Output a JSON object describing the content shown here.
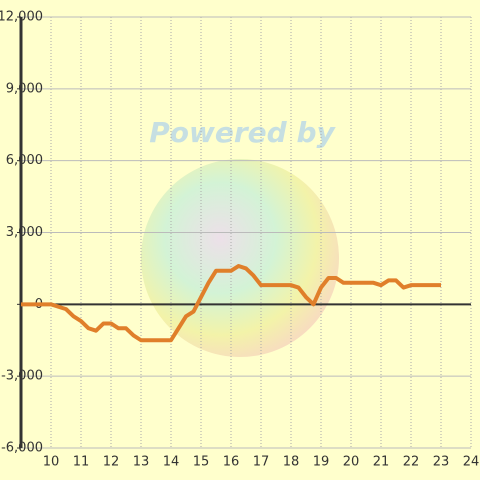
{
  "chart_data": {
    "type": "line",
    "watermark": "Powered by",
    "x": [
      9,
      9.25,
      9.5,
      9.75,
      10,
      10.25,
      10.5,
      10.75,
      11,
      11.25,
      11.5,
      11.75,
      12,
      12.25,
      12.5,
      12.75,
      13,
      13.25,
      13.5,
      13.75,
      14,
      14.25,
      14.5,
      14.75,
      15,
      15.25,
      15.5,
      15.75,
      16,
      16.25,
      16.5,
      16.75,
      17,
      17.25,
      17.5,
      17.75,
      18,
      18.25,
      18.5,
      18.75,
      19,
      19.25,
      19.5,
      19.75,
      20,
      20.25,
      20.5,
      20.75,
      21,
      21.25,
      21.5,
      21.75,
      22,
      22.25,
      22.5,
      22.75,
      23
    ],
    "series": [
      {
        "color": "#e07f2a",
        "values": [
          0,
          0,
          0,
          0,
          0,
          -100,
          -200,
          -500,
          -700,
          -1000,
          -1100,
          -800,
          -800,
          -1000,
          -1000,
          -1300,
          -1500,
          -1500,
          -1500,
          -1500,
          -1500,
          -1000,
          -500,
          -300,
          300,
          900,
          1400,
          1400,
          1400,
          1600,
          1500,
          1200,
          800,
          800,
          800,
          800,
          800,
          700,
          300,
          0,
          700,
          1100,
          1100,
          900,
          900,
          900,
          900,
          900,
          800,
          1000,
          1000,
          700,
          800,
          800,
          800,
          800,
          800
        ]
      }
    ],
    "xlim": [
      9,
      24
    ],
    "xticks": [
      10,
      11,
      12,
      13,
      14,
      15,
      16,
      17,
      18,
      19,
      20,
      21,
      22,
      23,
      24
    ],
    "ylim": [
      -6000,
      12000
    ],
    "yticks": [
      {
        "value": -6000,
        "label": "-6,000"
      },
      {
        "value": -3000,
        "label": "-3,000"
      },
      0,
      {
        "value": 3000,
        "label": "3,000"
      },
      {
        "value": 6000,
        "label": "6,000"
      },
      {
        "value": 9000,
        "label": "9,000"
      },
      {
        "value": 12000,
        "label": "12,000"
      }
    ],
    "grid": true
  }
}
